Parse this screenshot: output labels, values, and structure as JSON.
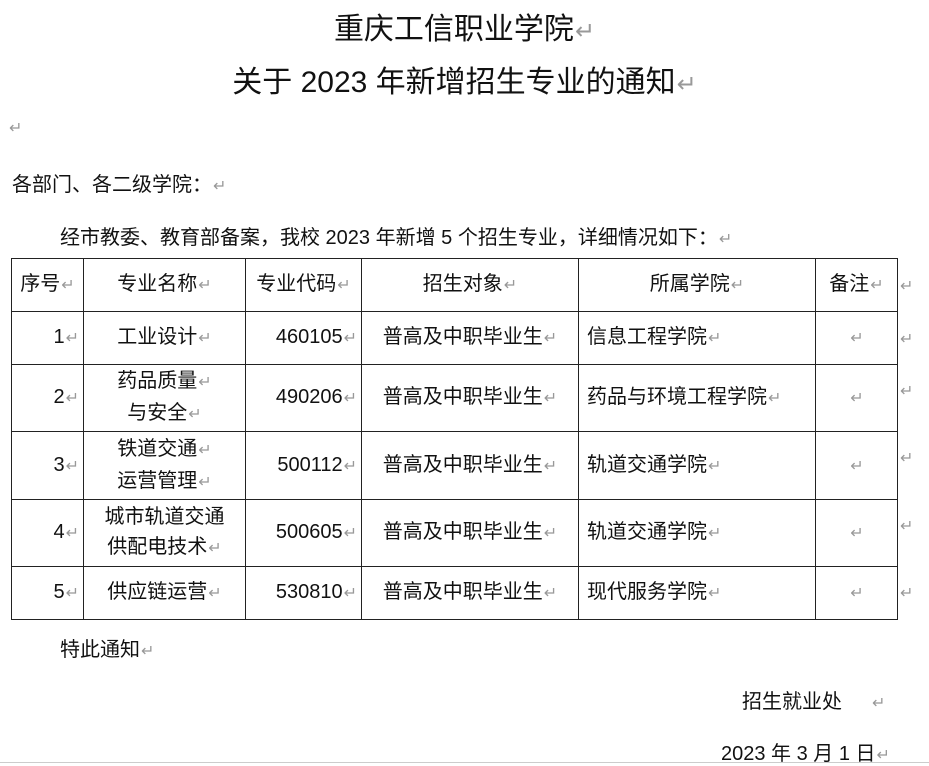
{
  "title_line1": "重庆工信职业学院",
  "title_line2": "关于 2023 年新增招生专业的通知",
  "salutation": "各部门、各二级学院：",
  "intro": "经市教委、教育部备案，我校 2023 年新增 5 个招生专业，详细情况如下：",
  "table": {
    "headers": [
      "序号",
      "专业名称",
      "专业代码",
      "招生对象",
      "所属学院",
      "备注"
    ],
    "rows": [
      {
        "no": "1",
        "name_l1": "工业设计",
        "name_l2": "",
        "code": "460105",
        "target": "普高及中职毕业生",
        "college": "信息工程学院",
        "note": ""
      },
      {
        "no": "2",
        "name_l1": "药品质量",
        "name_l2": "与安全",
        "code": "490206",
        "target": "普高及中职毕业生",
        "college": "药品与环境工程学院",
        "note": ""
      },
      {
        "no": "3",
        "name_l1": "铁道交通",
        "name_l2": "运营管理",
        "code": "500112",
        "target": "普高及中职毕业生",
        "college": "轨道交通学院",
        "note": ""
      },
      {
        "no": "4",
        "name_l1": "城市轨道交通",
        "name_l2": "供配电技术",
        "code": "500605",
        "target": "普高及中职毕业生",
        "college": "轨道交通学院",
        "note": ""
      },
      {
        "no": "5",
        "name_l1": "供应链运营",
        "name_l2": "",
        "code": "530810",
        "target": "普高及中职毕业生",
        "college": "现代服务学院",
        "note": ""
      }
    ]
  },
  "closing": "特此通知",
  "signature": "招生就业处",
  "date": "2023 年 3 月 1 日"
}
